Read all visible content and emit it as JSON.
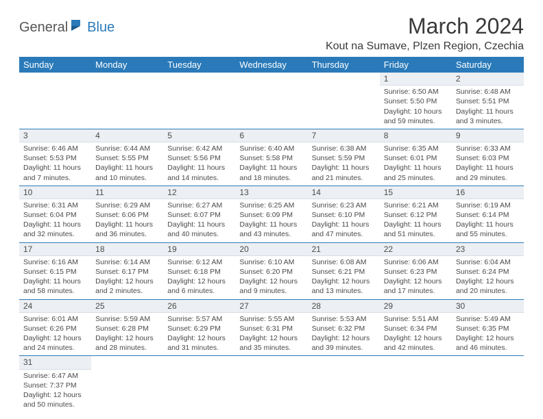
{
  "branding": {
    "logo_general": "General",
    "logo_blue": "Blue"
  },
  "header": {
    "month_title": "March 2024",
    "location": "Kout na Sumave, Plzen Region, Czechia"
  },
  "colors": {
    "header_bar": "#2a7ab9",
    "daynum_bg": "#eceff3",
    "border": "#2a7ab9",
    "text": "#4a4a4a"
  },
  "calendar": {
    "day_headers": [
      "Sunday",
      "Monday",
      "Tuesday",
      "Wednesday",
      "Thursday",
      "Friday",
      "Saturday"
    ],
    "weeks": [
      [
        null,
        null,
        null,
        null,
        null,
        {
          "num": "1",
          "sunrise": "Sunrise: 6:50 AM",
          "sunset": "Sunset: 5:50 PM",
          "daylight": "Daylight: 10 hours and 59 minutes."
        },
        {
          "num": "2",
          "sunrise": "Sunrise: 6:48 AM",
          "sunset": "Sunset: 5:51 PM",
          "daylight": "Daylight: 11 hours and 3 minutes."
        }
      ],
      [
        {
          "num": "3",
          "sunrise": "Sunrise: 6:46 AM",
          "sunset": "Sunset: 5:53 PM",
          "daylight": "Daylight: 11 hours and 7 minutes."
        },
        {
          "num": "4",
          "sunrise": "Sunrise: 6:44 AM",
          "sunset": "Sunset: 5:55 PM",
          "daylight": "Daylight: 11 hours and 10 minutes."
        },
        {
          "num": "5",
          "sunrise": "Sunrise: 6:42 AM",
          "sunset": "Sunset: 5:56 PM",
          "daylight": "Daylight: 11 hours and 14 minutes."
        },
        {
          "num": "6",
          "sunrise": "Sunrise: 6:40 AM",
          "sunset": "Sunset: 5:58 PM",
          "daylight": "Daylight: 11 hours and 18 minutes."
        },
        {
          "num": "7",
          "sunrise": "Sunrise: 6:38 AM",
          "sunset": "Sunset: 5:59 PM",
          "daylight": "Daylight: 11 hours and 21 minutes."
        },
        {
          "num": "8",
          "sunrise": "Sunrise: 6:35 AM",
          "sunset": "Sunset: 6:01 PM",
          "daylight": "Daylight: 11 hours and 25 minutes."
        },
        {
          "num": "9",
          "sunrise": "Sunrise: 6:33 AM",
          "sunset": "Sunset: 6:03 PM",
          "daylight": "Daylight: 11 hours and 29 minutes."
        }
      ],
      [
        {
          "num": "10",
          "sunrise": "Sunrise: 6:31 AM",
          "sunset": "Sunset: 6:04 PM",
          "daylight": "Daylight: 11 hours and 32 minutes."
        },
        {
          "num": "11",
          "sunrise": "Sunrise: 6:29 AM",
          "sunset": "Sunset: 6:06 PM",
          "daylight": "Daylight: 11 hours and 36 minutes."
        },
        {
          "num": "12",
          "sunrise": "Sunrise: 6:27 AM",
          "sunset": "Sunset: 6:07 PM",
          "daylight": "Daylight: 11 hours and 40 minutes."
        },
        {
          "num": "13",
          "sunrise": "Sunrise: 6:25 AM",
          "sunset": "Sunset: 6:09 PM",
          "daylight": "Daylight: 11 hours and 43 minutes."
        },
        {
          "num": "14",
          "sunrise": "Sunrise: 6:23 AM",
          "sunset": "Sunset: 6:10 PM",
          "daylight": "Daylight: 11 hours and 47 minutes."
        },
        {
          "num": "15",
          "sunrise": "Sunrise: 6:21 AM",
          "sunset": "Sunset: 6:12 PM",
          "daylight": "Daylight: 11 hours and 51 minutes."
        },
        {
          "num": "16",
          "sunrise": "Sunrise: 6:19 AM",
          "sunset": "Sunset: 6:14 PM",
          "daylight": "Daylight: 11 hours and 55 minutes."
        }
      ],
      [
        {
          "num": "17",
          "sunrise": "Sunrise: 6:16 AM",
          "sunset": "Sunset: 6:15 PM",
          "daylight": "Daylight: 11 hours and 58 minutes."
        },
        {
          "num": "18",
          "sunrise": "Sunrise: 6:14 AM",
          "sunset": "Sunset: 6:17 PM",
          "daylight": "Daylight: 12 hours and 2 minutes."
        },
        {
          "num": "19",
          "sunrise": "Sunrise: 6:12 AM",
          "sunset": "Sunset: 6:18 PM",
          "daylight": "Daylight: 12 hours and 6 minutes."
        },
        {
          "num": "20",
          "sunrise": "Sunrise: 6:10 AM",
          "sunset": "Sunset: 6:20 PM",
          "daylight": "Daylight: 12 hours and 9 minutes."
        },
        {
          "num": "21",
          "sunrise": "Sunrise: 6:08 AM",
          "sunset": "Sunset: 6:21 PM",
          "daylight": "Daylight: 12 hours and 13 minutes."
        },
        {
          "num": "22",
          "sunrise": "Sunrise: 6:06 AM",
          "sunset": "Sunset: 6:23 PM",
          "daylight": "Daylight: 12 hours and 17 minutes."
        },
        {
          "num": "23",
          "sunrise": "Sunrise: 6:04 AM",
          "sunset": "Sunset: 6:24 PM",
          "daylight": "Daylight: 12 hours and 20 minutes."
        }
      ],
      [
        {
          "num": "24",
          "sunrise": "Sunrise: 6:01 AM",
          "sunset": "Sunset: 6:26 PM",
          "daylight": "Daylight: 12 hours and 24 minutes."
        },
        {
          "num": "25",
          "sunrise": "Sunrise: 5:59 AM",
          "sunset": "Sunset: 6:28 PM",
          "daylight": "Daylight: 12 hours and 28 minutes."
        },
        {
          "num": "26",
          "sunrise": "Sunrise: 5:57 AM",
          "sunset": "Sunset: 6:29 PM",
          "daylight": "Daylight: 12 hours and 31 minutes."
        },
        {
          "num": "27",
          "sunrise": "Sunrise: 5:55 AM",
          "sunset": "Sunset: 6:31 PM",
          "daylight": "Daylight: 12 hours and 35 minutes."
        },
        {
          "num": "28",
          "sunrise": "Sunrise: 5:53 AM",
          "sunset": "Sunset: 6:32 PM",
          "daylight": "Daylight: 12 hours and 39 minutes."
        },
        {
          "num": "29",
          "sunrise": "Sunrise: 5:51 AM",
          "sunset": "Sunset: 6:34 PM",
          "daylight": "Daylight: 12 hours and 42 minutes."
        },
        {
          "num": "30",
          "sunrise": "Sunrise: 5:49 AM",
          "sunset": "Sunset: 6:35 PM",
          "daylight": "Daylight: 12 hours and 46 minutes."
        }
      ],
      [
        {
          "num": "31",
          "sunrise": "Sunrise: 6:47 AM",
          "sunset": "Sunset: 7:37 PM",
          "daylight": "Daylight: 12 hours and 50 minutes."
        },
        null,
        null,
        null,
        null,
        null,
        null
      ]
    ]
  }
}
